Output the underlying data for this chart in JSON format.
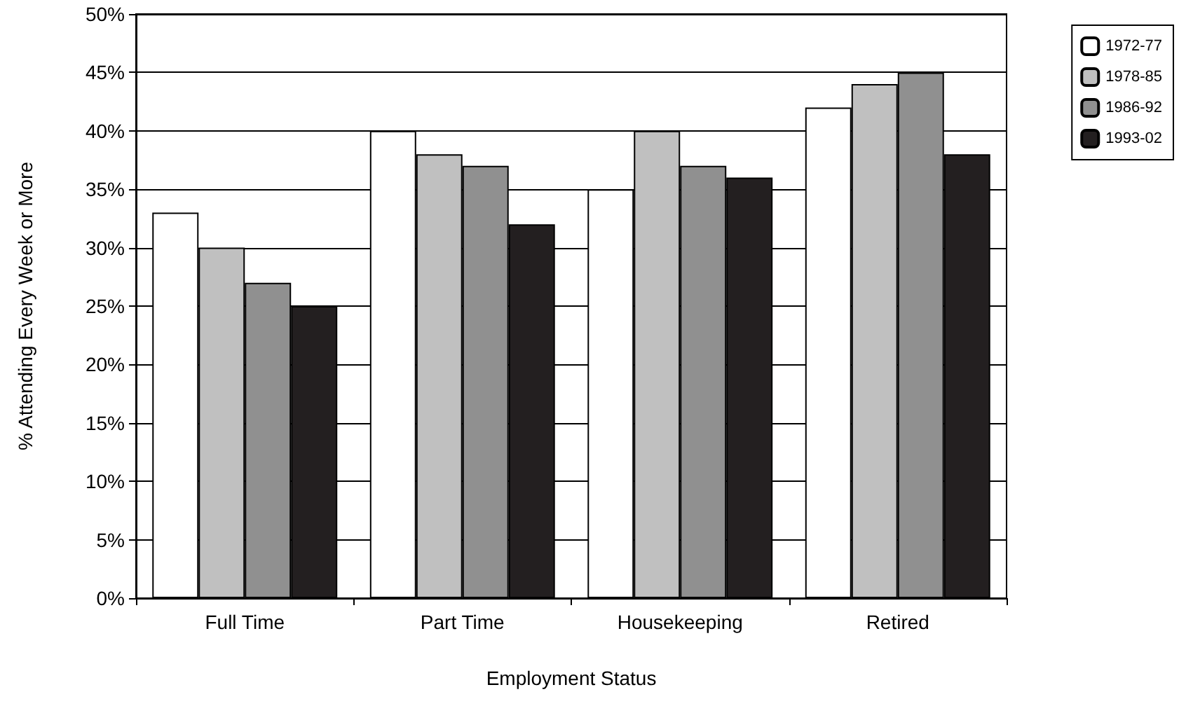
{
  "chart_data": {
    "type": "bar",
    "xlabel": "Employment Status",
    "ylabel": "% Attending Every Week or More",
    "categories": [
      "Full Time",
      "Part Time",
      "Housekeeping",
      "Retired"
    ],
    "series": [
      {
        "name": "1972-77",
        "color": "#ffffff",
        "values": [
          33,
          40,
          35,
          42
        ]
      },
      {
        "name": "1978-85",
        "color": "#c0c0c0",
        "values": [
          30,
          38,
          40,
          44
        ]
      },
      {
        "name": "1986-92",
        "color": "#909090",
        "values": [
          27,
          37,
          37,
          45
        ]
      },
      {
        "name": "1993-02",
        "color": "#231f20",
        "values": [
          25,
          32,
          36,
          38
        ]
      }
    ],
    "ylim": [
      0,
      50
    ],
    "yticks": [
      {
        "value": 0,
        "label": "0%"
      },
      {
        "value": 5,
        "label": "5%"
      },
      {
        "value": 10,
        "label": "10%"
      },
      {
        "value": 15,
        "label": "15%"
      },
      {
        "value": 20,
        "label": "20%"
      },
      {
        "value": 25,
        "label": "25%"
      },
      {
        "value": 30,
        "label": "30%"
      },
      {
        "value": 35,
        "label": "35%"
      },
      {
        "value": 40,
        "label": "40%"
      },
      {
        "value": 45,
        "label": "45%"
      },
      {
        "value": 50,
        "label": "50%"
      }
    ],
    "grid": "y",
    "legend": "top right"
  }
}
